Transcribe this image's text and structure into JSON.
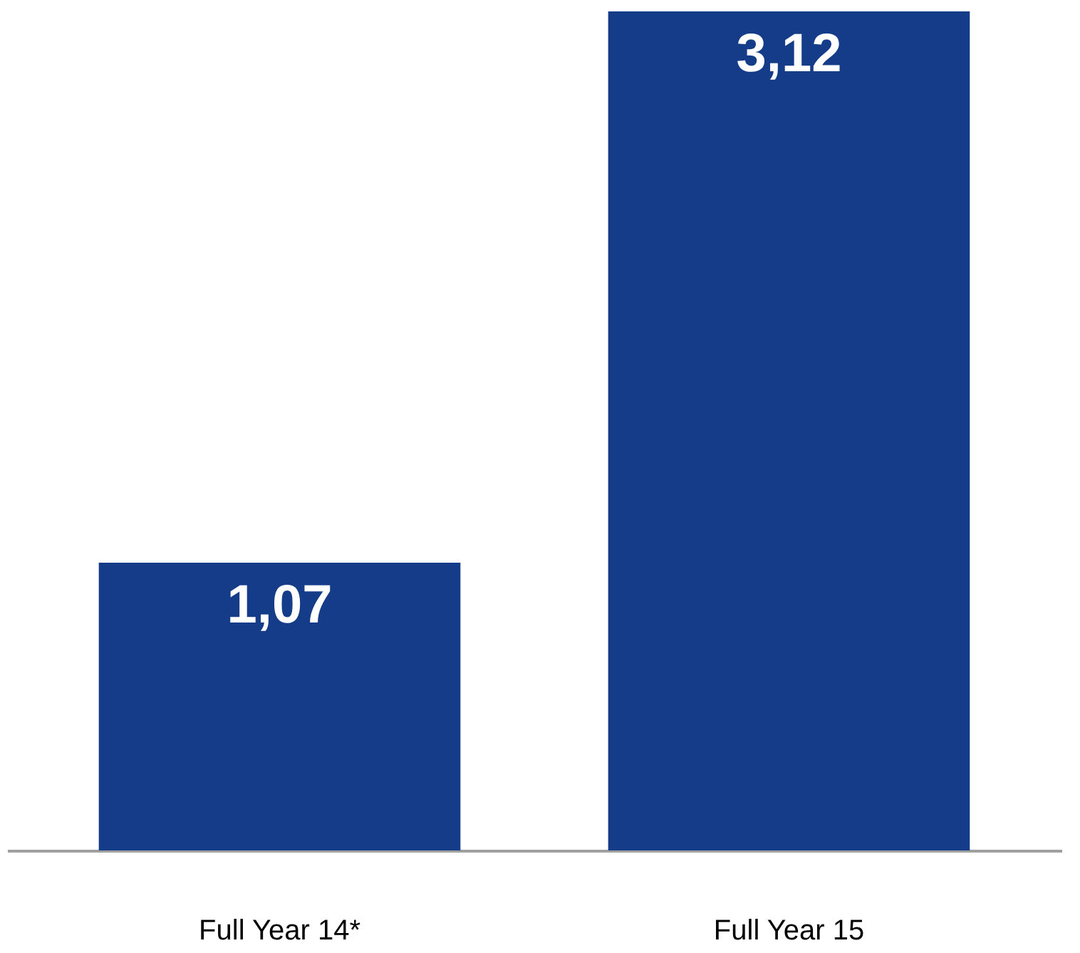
{
  "chart_data": {
    "type": "bar",
    "categories": [
      "Full Year 14*",
      "Full Year 15"
    ],
    "values": [
      1.07,
      3.12
    ],
    "value_labels": [
      "1,07",
      "3,12"
    ],
    "color": "#143c89"
  }
}
